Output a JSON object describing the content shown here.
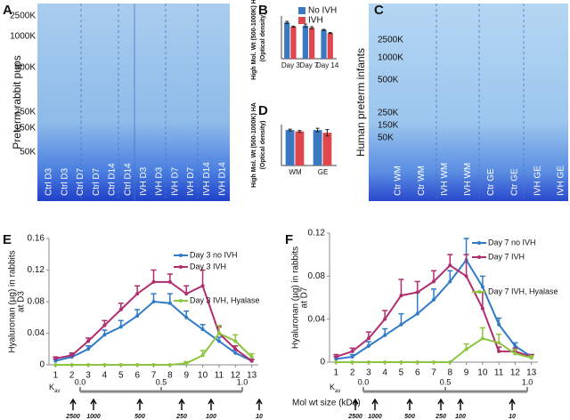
{
  "gels": [
    {
      "label": "A",
      "ylabel": "Preterm rabbit pups",
      "markers": [
        "2500K",
        "1000K",
        "500K",
        "250K",
        "150K",
        "50K"
      ],
      "lanes": [
        "Ctrl D3",
        "Ctrl D3",
        "Ctrl D7",
        "Ctrl D7",
        "Ctrl D14",
        "Ctrl D14",
        "IVH D3",
        "IVH D3",
        "IVH D7",
        "IVH D7",
        "IVH D14",
        "IVH D14"
      ]
    },
    {
      "label": "C",
      "ylabel": "Human preterm infants",
      "markers": [
        "2500K",
        "1000K",
        "500K",
        "250K",
        "150K",
        "50K"
      ],
      "lanes": [
        "Ctr WM",
        "Ctr WM",
        "IVH WM",
        "IVH WM",
        "Ctr GE",
        "Ctr GE",
        "IVH GE",
        "IVH GE"
      ]
    }
  ],
  "chart_data": [
    {
      "type": "bar",
      "label": "B",
      "ylabel": [
        "High Mol. Wt (500-1000K) HA",
        "(Optical density)"
      ],
      "categories": [
        "Day 3",
        "Day 7",
        "Day 14"
      ],
      "ylim": [
        0,
        0.8
      ],
      "series": [
        {
          "name": "No IVH",
          "color": "#3b78c2",
          "values": [
            0.68,
            0.62,
            0.54
          ],
          "errors": [
            0.02,
            0.03,
            0.01
          ]
        },
        {
          "name": "IVH",
          "color": "#e0474c",
          "values": [
            0.6,
            0.58,
            0.48
          ],
          "errors": [
            0.01,
            0.02,
            0.01
          ]
        }
      ],
      "legend": true
    },
    {
      "type": "bar",
      "label": "D",
      "ylabel": [
        "High Mol. Wt (500-1000K) HA",
        "(Optical density)"
      ],
      "categories": [
        "WM",
        "GE"
      ],
      "ylim": [
        0,
        0.9
      ],
      "series": [
        {
          "color": "#3b78c2",
          "values": [
            0.78,
            0.78
          ],
          "errors": [
            0.02,
            0.04
          ]
        },
        {
          "color": "#e0474c",
          "values": [
            0.75,
            0.72
          ],
          "errors": [
            0.02,
            0.07
          ]
        }
      ],
      "legend": false
    },
    {
      "type": "line",
      "label": "E",
      "ylabel": [
        "Hyaluronan (µg) in rabbits",
        "at D3"
      ],
      "x": [
        1,
        2,
        3,
        4,
        5,
        6,
        7,
        8,
        9,
        10,
        11,
        12,
        13
      ],
      "xlim": [
        0.6,
        13.4
      ],
      "xticks": [
        1,
        2,
        3,
        4,
        5,
        6,
        7,
        8,
        9,
        10,
        11,
        12,
        13
      ],
      "ylim": [
        0,
        0.16
      ],
      "yticks": [
        0,
        0.04,
        0.08,
        0.12,
        0.16
      ],
      "series": [
        {
          "name": "Day 3 no IVH",
          "color": "#2f7bc8",
          "values": [
            0.005,
            0.01,
            0.02,
            0.038,
            0.048,
            0.062,
            0.08,
            0.078,
            0.06,
            0.045,
            0.03,
            0.015,
            0.005
          ],
          "errors": [
            0.002,
            0.003,
            0.004,
            0.006,
            0.008,
            0.008,
            0.01,
            0.012,
            0.008,
            0.006,
            0.005,
            0.004,
            0.002
          ]
        },
        {
          "name": "Day 3 IVH",
          "color": "#b02d6e",
          "values": [
            0.008,
            0.012,
            0.03,
            0.05,
            0.07,
            0.09,
            0.105,
            0.105,
            0.09,
            0.1,
            0.04,
            0.02,
            0.005
          ],
          "errors": [
            0.002,
            0.003,
            0.004,
            0.006,
            0.008,
            0.01,
            0.015,
            0.01,
            0.01,
            0.02,
            0.008,
            0.004,
            0.002
          ]
        },
        {
          "name": "Day 3 IVH, Hyalase",
          "color": "#8cc63f",
          "values": [
            0,
            0,
            0,
            0,
            0,
            0,
            0,
            0,
            0.002,
            0.012,
            0.04,
            0.03,
            0.01
          ],
          "errors": [
            0,
            0,
            0,
            0,
            0,
            0,
            0,
            0,
            0.002,
            0.006,
            0.01,
            0.008,
            0.004
          ]
        }
      ]
    },
    {
      "type": "line",
      "label": "F",
      "ylabel": [
        "Hyaluronan (µg) in rabbits",
        "at D7"
      ],
      "x": [
        1,
        2,
        3,
        4,
        5,
        6,
        7,
        8,
        9,
        10,
        11,
        12,
        13
      ],
      "xlim": [
        0.6,
        13.4
      ],
      "xticks": [
        1,
        2,
        3,
        4,
        5,
        6,
        7,
        8,
        9,
        10,
        11,
        12,
        13
      ],
      "ylim": [
        0,
        0.12
      ],
      "yticks": [
        0,
        0.04,
        0.08,
        0.12
      ],
      "series": [
        {
          "name": "Day 7 no IVH",
          "color": "#2f7bc8",
          "values": [
            0.003,
            0.005,
            0.015,
            0.025,
            0.035,
            0.045,
            0.058,
            0.075,
            0.095,
            0.07,
            0.035,
            0.015,
            0.005
          ],
          "errors": [
            0.002,
            0.002,
            0.004,
            0.006,
            0.01,
            0.02,
            0.01,
            0.01,
            0.02,
            0.01,
            0.006,
            0.003,
            0.002
          ]
        },
        {
          "name": "Day 7 IVH",
          "color": "#b02d6e",
          "values": [
            0.005,
            0.01,
            0.022,
            0.04,
            0.062,
            0.065,
            0.075,
            0.09,
            0.08,
            0.05,
            0.01,
            0.01,
            0.005
          ],
          "errors": [
            0.002,
            0.003,
            0.006,
            0.008,
            0.015,
            0.01,
            0.01,
            0.01,
            0.02,
            0.015,
            0.004,
            0.003,
            0.002
          ]
        },
        {
          "name": "Day 7 IVH, Hyalase",
          "color": "#8cc63f",
          "values": [
            0,
            0,
            0,
            0,
            0,
            0,
            0,
            0,
            0.012,
            0.022,
            0.018,
            0.008,
            0.004
          ],
          "errors": [
            0,
            0,
            0,
            0,
            0,
            0,
            0,
            0,
            0.005,
            0.01,
            0.008,
            0.004,
            0.002
          ]
        }
      ]
    }
  ],
  "kav_scale": {
    "symbol": "K",
    "subscript": "av",
    "ticks": [
      {
        "value": 0,
        "label": "0.0"
      },
      {
        "value": 0.5,
        "label": "0.5"
      },
      {
        "value": 1,
        "label": "1.0"
      }
    ],
    "mw_labels": [
      "2500",
      "1000",
      "500",
      "250",
      "100",
      "10"
    ],
    "axis_label": "Mol wt size (kDa)"
  }
}
